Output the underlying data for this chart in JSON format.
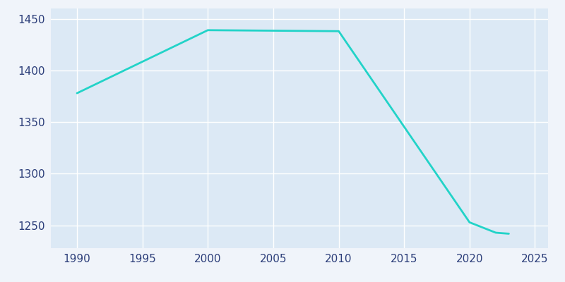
{
  "years": [
    1990,
    2000,
    2010,
    2020,
    2022,
    2023
  ],
  "population": [
    1378,
    1439,
    1438,
    1253,
    1243,
    1242
  ],
  "line_color": "#22d3c8",
  "plot_bg_color": "#dce9f5",
  "figure_bg": "#f0f4fa",
  "tick_label_color": "#2c3e7a",
  "xlim": [
    1988,
    2026
  ],
  "ylim": [
    1228,
    1460
  ],
  "xticks": [
    1990,
    1995,
    2000,
    2005,
    2010,
    2015,
    2020,
    2025
  ],
  "yticks": [
    1250,
    1300,
    1350,
    1400,
    1450
  ],
  "line_width": 2.0,
  "grid_color": "#ffffff",
  "grid_alpha": 1.0,
  "grid_linewidth": 1.0
}
